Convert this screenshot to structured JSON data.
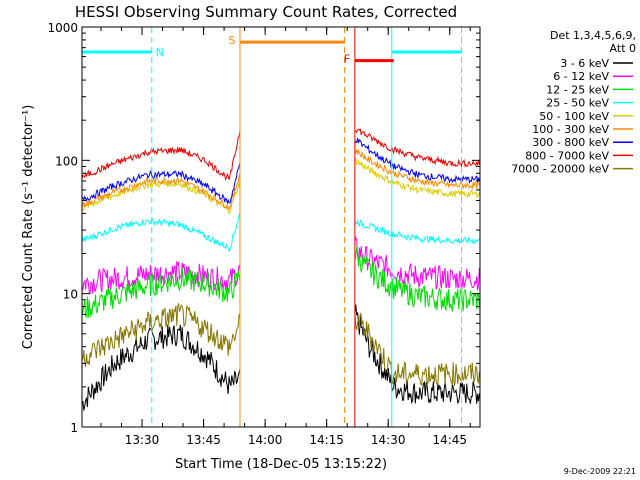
{
  "chart_data": {
    "type": "line",
    "title": "HESSI Observing Summary Count Rates, Corrected",
    "xlabel": "Start Time (18-Dec-05 13:15:22)",
    "ylabel": "Corrected Count Rate (s⁻¹ detector⁻¹)",
    "yscale": "log",
    "ylim": [
      1,
      1000
    ],
    "xlim_minutes": [
      0,
      97
    ],
    "x_ticks": [
      "13:30",
      "13:45",
      "14:00",
      "14:15",
      "14:30",
      "14:45"
    ],
    "y_ticks": [
      "1",
      "10",
      "100",
      "1000"
    ],
    "legend_header": [
      "Det 1,3,4,5,6,9,",
      "Att 0"
    ],
    "legend_position": "right",
    "footer": "9-Dec-2009 22:21",
    "segments_minutes": [
      [
        0,
        38.5
      ],
      [
        66.5,
        97
      ]
    ],
    "x_minutes": [
      0,
      8,
      16,
      24,
      30,
      36,
      38.5,
      66.5,
      70,
      76,
      82,
      90,
      97
    ],
    "series": [
      {
        "name": "3 - 6 keV",
        "color": "#000000",
        "values": [
          1.5,
          3,
          4.5,
          5,
          3.5,
          2,
          2.3,
          7,
          4,
          2,
          1.8,
          1.8,
          1.8
        ]
      },
      {
        "name": "6 - 12 keV",
        "color": "#ff00ff",
        "values": [
          12,
          13,
          14,
          14.5,
          13.5,
          12.5,
          15,
          22,
          18,
          15,
          13.5,
          13,
          13
        ]
      },
      {
        "name": "12 - 25 keV",
        "color": "#00dd00",
        "values": [
          7.5,
          9.5,
          11.5,
          13,
          12,
          10,
          14,
          20,
          15,
          11,
          9.5,
          9,
          9
        ]
      },
      {
        "name": "25 - 50 keV",
        "color": "#00ffff",
        "values": [
          25,
          31,
          35,
          33,
          27,
          22,
          40,
          35,
          32,
          28,
          26,
          25,
          25
        ]
      },
      {
        "name": "50 - 100 keV",
        "color": "#ddcc00",
        "values": [
          44,
          55,
          66,
          67,
          55,
          42,
          70,
          100,
          85,
          68,
          60,
          56,
          56
        ]
      },
      {
        "name": "100 - 300 keV",
        "color": "#ff8800",
        "values": [
          46,
          58,
          70,
          71,
          58,
          44,
          80,
          120,
          100,
          80,
          70,
          65,
          65
        ]
      },
      {
        "name": "300 - 800 keV",
        "color": "#0000ff",
        "values": [
          50,
          65,
          78,
          79,
          65,
          48,
          95,
          145,
          120,
          90,
          78,
          72,
          72
        ]
      },
      {
        "name": "800 - 7000 keV",
        "color": "#ee0000",
        "values": [
          75,
          95,
          115,
          120,
          100,
          72,
          170,
          175,
          150,
          120,
          105,
          95,
          95
        ]
      },
      {
        "name": "7000 - 20000 keV",
        "color": "#887700",
        "values": [
          3.3,
          4.5,
          6,
          7,
          5.5,
          4,
          6,
          6.5,
          5,
          2.5,
          2.5,
          2.5,
          2.5
        ]
      }
    ],
    "annotations": [
      {
        "label": "N",
        "color": "#00ffff",
        "kind": "night",
        "bar_minutes": [
          0,
          17
        ],
        "dashed_minutes": [
          17
        ]
      },
      {
        "label": "",
        "color": "#00ffff",
        "kind": "night",
        "bar_minutes": [
          75.5,
          92.5
        ],
        "dashed_minutes": [
          92.5
        ],
        "line_minutes": [
          75.5
        ]
      },
      {
        "label": "S",
        "color": "#ff8800",
        "kind": "saa",
        "bar_minutes": [
          38.5,
          64
        ],
        "dashed_minutes": [
          64
        ],
        "line_minutes": [
          38.5
        ]
      },
      {
        "label": "F",
        "color": "#ff0000",
        "kind": "flare",
        "bar_minutes": [
          66.5,
          76
        ],
        "line_minutes": [
          66.5
        ]
      }
    ],
    "annotation_bar_levels": {
      "night": 650,
      "saa": 770,
      "flare": 560
    }
  }
}
